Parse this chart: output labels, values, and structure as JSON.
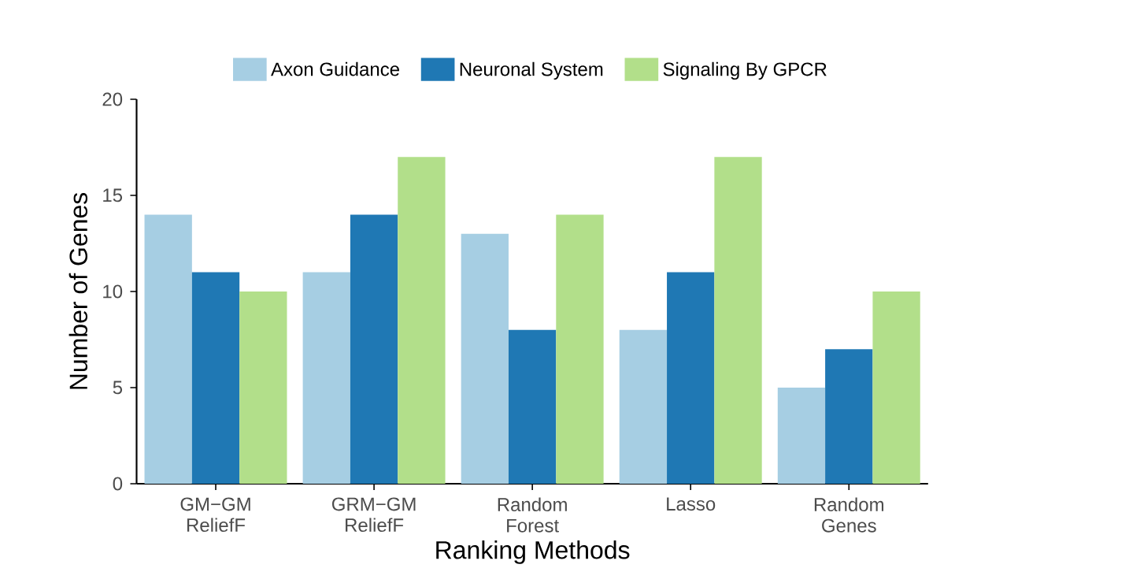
{
  "chart_data": {
    "type": "bar",
    "xlabel": "Ranking Methods",
    "ylabel": "Number of Genes",
    "categories": [
      "GM−GM ReliefF",
      "GRM−GM ReliefF",
      "Random Forest",
      "Lasso",
      "Random Genes"
    ],
    "series": [
      {
        "name": "Axon Guidance",
        "color": "#a6cee3",
        "values": [
          14,
          11,
          13,
          8,
          5
        ]
      },
      {
        "name": "Neuronal System",
        "color": "#1f78b4",
        "values": [
          11,
          14,
          8,
          11,
          7
        ]
      },
      {
        "name": "Signaling By GPCR",
        "color": "#b2df8a",
        "values": [
          10,
          17,
          14,
          17,
          10
        ]
      }
    ],
    "ylim": [
      0,
      20
    ],
    "yticks": [
      0,
      5,
      10,
      15,
      20
    ],
    "grid": false,
    "legend": "top"
  }
}
